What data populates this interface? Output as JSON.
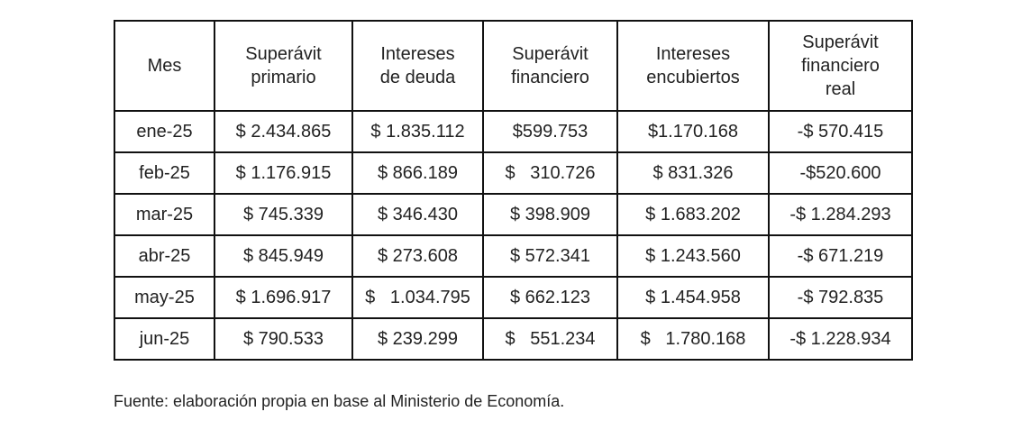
{
  "table": {
    "header": [
      "Mes",
      "Superávit\nprimario",
      "Intereses\nde deuda",
      "Superávit\nfinanciero",
      "Intereses\nencubiertos",
      "Superávit\nfinanciero\nreal"
    ],
    "rows": [
      [
        "ene-25",
        "$ 2.434.865",
        "$ 1.835.112",
        "$599.753",
        "$1.170.168",
        "-$ 570.415"
      ],
      [
        "feb-25",
        "$ 1.176.915",
        "$ 866.189",
        "$   310.726",
        "$ 831.326",
        "-$520.600"
      ],
      [
        "mar-25",
        "$ 745.339",
        "$ 346.430",
        "$ 398.909",
        "$ 1.683.202",
        "-$ 1.284.293"
      ],
      [
        "abr-25",
        "$ 845.949",
        "$ 273.608",
        "$ 572.341",
        "$ 1.243.560",
        "-$ 671.219"
      ],
      [
        "may-25",
        "$ 1.696.917",
        "$   1.034.795",
        "$ 662.123",
        "$ 1.454.958",
        "-$ 792.835"
      ],
      [
        "jun-25",
        "$ 790.533",
        "$ 239.299",
        "$   551.234",
        "$   1.780.168",
        "-$ 1.228.934"
      ]
    ]
  },
  "footer": {
    "source": "Fuente: elaboración propia en base al Ministerio de Economía."
  }
}
